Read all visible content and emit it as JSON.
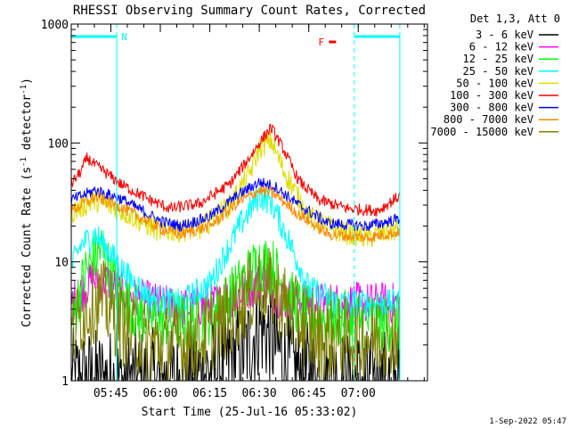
{
  "chart_data": {
    "type": "line",
    "title": "RHESSI Observing Summary Count Rates, Corrected",
    "xlabel": "Start Time (25-Jul-16 05:33:02)",
    "ylabel_main": "Corrected Count Rate (s",
    "ylabel_sup1": "-1",
    "ylabel_mid": " detector",
    "ylabel_sup2": "-1",
    "ylabel_end": ")",
    "yscale": "log",
    "ylim": [
      1,
      1000
    ],
    "xlim": [
      5.55,
      7.35
    ],
    "x_ticks": [
      {
        "t": 5.75,
        "label": "05:45"
      },
      {
        "t": 6.0,
        "label": "06:00"
      },
      {
        "t": 6.25,
        "label": "06:15"
      },
      {
        "t": 6.5,
        "label": "06:30"
      },
      {
        "t": 6.75,
        "label": "06:45"
      },
      {
        "t": 7.0,
        "label": "07:00"
      }
    ],
    "y_ticks": [
      {
        "v": 1,
        "label": "1"
      },
      {
        "v": 10,
        "label": "10"
      },
      {
        "v": 100,
        "label": "100"
      },
      {
        "v": 1000,
        "label": "1000"
      }
    ],
    "legend_title": "Det 1,3, Att 0",
    "legend_placement": "right",
    "flags": [
      {
        "label": "N",
        "color": "#00ffff",
        "start": 5.55,
        "end": 5.78
      },
      {
        "label": "",
        "color": "#00ffff",
        "start": 6.98,
        "end": 7.21
      }
    ],
    "flare_marker": {
      "label": "F",
      "color": "#ff0000",
      "t": 6.87
    },
    "night_lines": [
      5.78,
      6.98,
      7.21
    ],
    "series": [
      {
        "name": "3 - 6 keV",
        "color": "#000000",
        "knots": [
          [
            5.55,
            1.0
          ],
          [
            5.7,
            1.0
          ],
          [
            5.9,
            1.0
          ],
          [
            6.1,
            1.0
          ],
          [
            6.3,
            1.3
          ],
          [
            6.45,
            2.0
          ],
          [
            6.5,
            3.0
          ],
          [
            6.55,
            2.4
          ],
          [
            6.65,
            1.3
          ],
          [
            6.85,
            1.0
          ],
          [
            7.21,
            1.0
          ]
        ],
        "noise": 0.45
      },
      {
        "name": "6 - 12 keV",
        "color": "#ff00ff",
        "knots": [
          [
            5.55,
            4.5
          ],
          [
            5.65,
            7.0
          ],
          [
            5.72,
            7.0
          ],
          [
            5.85,
            5.0
          ],
          [
            6.1,
            4.0
          ],
          [
            6.3,
            4.5
          ],
          [
            6.45,
            6.0
          ],
          [
            6.52,
            7.0
          ],
          [
            6.6,
            5.0
          ],
          [
            6.8,
            4.5
          ],
          [
            7.21,
            4.5
          ]
        ],
        "noise": 0.18
      },
      {
        "name": "12 - 25 keV",
        "color": "#00ff00",
        "knots": [
          [
            5.55,
            3.0
          ],
          [
            5.62,
            8.0
          ],
          [
            5.7,
            13.0
          ],
          [
            5.8,
            5.0
          ],
          [
            5.9,
            3.5
          ],
          [
            6.2,
            3.0
          ],
          [
            6.35,
            5.0
          ],
          [
            6.5,
            10.0
          ],
          [
            6.57,
            9.0
          ],
          [
            6.65,
            5.0
          ],
          [
            6.75,
            3.5
          ],
          [
            7.21,
            3.0
          ]
        ],
        "noise": 0.25
      },
      {
        "name": "25 - 50 keV",
        "color": "#00ffff",
        "knots": [
          [
            5.55,
            9.0
          ],
          [
            5.6,
            14.0
          ],
          [
            5.67,
            17.0
          ],
          [
            5.73,
            13.0
          ],
          [
            5.82,
            8.0
          ],
          [
            5.95,
            5.0
          ],
          [
            6.1,
            4.5
          ],
          [
            6.25,
            6.5
          ],
          [
            6.4,
            20.0
          ],
          [
            6.5,
            36.0
          ],
          [
            6.56,
            32.0
          ],
          [
            6.65,
            15.0
          ],
          [
            6.75,
            6.0
          ],
          [
            6.9,
            4.5
          ],
          [
            7.21,
            4.5
          ]
        ],
        "noise": 0.12
      },
      {
        "name": "50 - 100 keV",
        "color": "#dddd00",
        "knots": [
          [
            5.55,
            26.0
          ],
          [
            5.67,
            33.0
          ],
          [
            5.8,
            27.0
          ],
          [
            6.0,
            18.0
          ],
          [
            6.2,
            19.0
          ],
          [
            6.35,
            30.0
          ],
          [
            6.45,
            55.0
          ],
          [
            6.5,
            90.0
          ],
          [
            6.56,
            105.0
          ],
          [
            6.62,
            60.0
          ],
          [
            6.75,
            24.0
          ],
          [
            6.9,
            18.0
          ],
          [
            7.05,
            16.0
          ],
          [
            7.21,
            19.0
          ]
        ],
        "noise": 0.1
      },
      {
        "name": "100 - 300 keV",
        "color": "#ff0000",
        "knots": [
          [
            5.55,
            45.0
          ],
          [
            5.6,
            58.0
          ],
          [
            5.63,
            75.0
          ],
          [
            5.67,
            65.0
          ],
          [
            5.72,
            57.0
          ],
          [
            5.8,
            45.0
          ],
          [
            5.95,
            33.0
          ],
          [
            6.05,
            28.0
          ],
          [
            6.2,
            31.0
          ],
          [
            6.35,
            45.0
          ],
          [
            6.45,
            75.0
          ],
          [
            6.5,
            100.0
          ],
          [
            6.56,
            135.0
          ],
          [
            6.62,
            90.0
          ],
          [
            6.7,
            48.0
          ],
          [
            6.8,
            33.0
          ],
          [
            6.95,
            28.0
          ],
          [
            7.1,
            27.0
          ],
          [
            7.21,
            36.0
          ]
        ],
        "noise": 0.05
      },
      {
        "name": "300 - 800 keV",
        "color": "#0000ff",
        "knots": [
          [
            5.55,
            33.0
          ],
          [
            5.67,
            40.0
          ],
          [
            5.8,
            34.0
          ],
          [
            6.0,
            22.0
          ],
          [
            6.1,
            20.0
          ],
          [
            6.25,
            24.0
          ],
          [
            6.4,
            37.0
          ],
          [
            6.5,
            47.0
          ],
          [
            6.58,
            43.0
          ],
          [
            6.7,
            30.0
          ],
          [
            6.85,
            21.0
          ],
          [
            7.05,
            20.0
          ],
          [
            7.21,
            23.0
          ]
        ],
        "noise": 0.05
      },
      {
        "name": "800 - 7000 keV",
        "color": "#ff8800",
        "knots": [
          [
            5.55,
            27.0
          ],
          [
            5.67,
            35.0
          ],
          [
            5.8,
            29.0
          ],
          [
            6.0,
            19.0
          ],
          [
            6.1,
            17.0
          ],
          [
            6.25,
            20.0
          ],
          [
            6.4,
            32.0
          ],
          [
            6.5,
            40.0
          ],
          [
            6.58,
            37.0
          ],
          [
            6.7,
            25.0
          ],
          [
            6.85,
            17.0
          ],
          [
            7.05,
            16.0
          ],
          [
            7.21,
            18.0
          ]
        ],
        "noise": 0.05
      },
      {
        "name": "7000 - 15000 keV",
        "color": "#808000",
        "knots": [
          [
            5.55,
            2.5
          ],
          [
            5.62,
            4.0
          ],
          [
            5.7,
            5.0
          ],
          [
            5.8,
            3.0
          ],
          [
            5.95,
            2.0
          ],
          [
            6.2,
            2.2
          ],
          [
            6.35,
            3.5
          ],
          [
            6.5,
            6.5
          ],
          [
            6.58,
            5.5
          ],
          [
            6.68,
            3.5
          ],
          [
            6.8,
            2.2
          ],
          [
            7.21,
            2.5
          ]
        ],
        "noise": 0.35
      }
    ]
  },
  "footer": {
    "date_stamp": "1-Sep-2022 05:47"
  }
}
